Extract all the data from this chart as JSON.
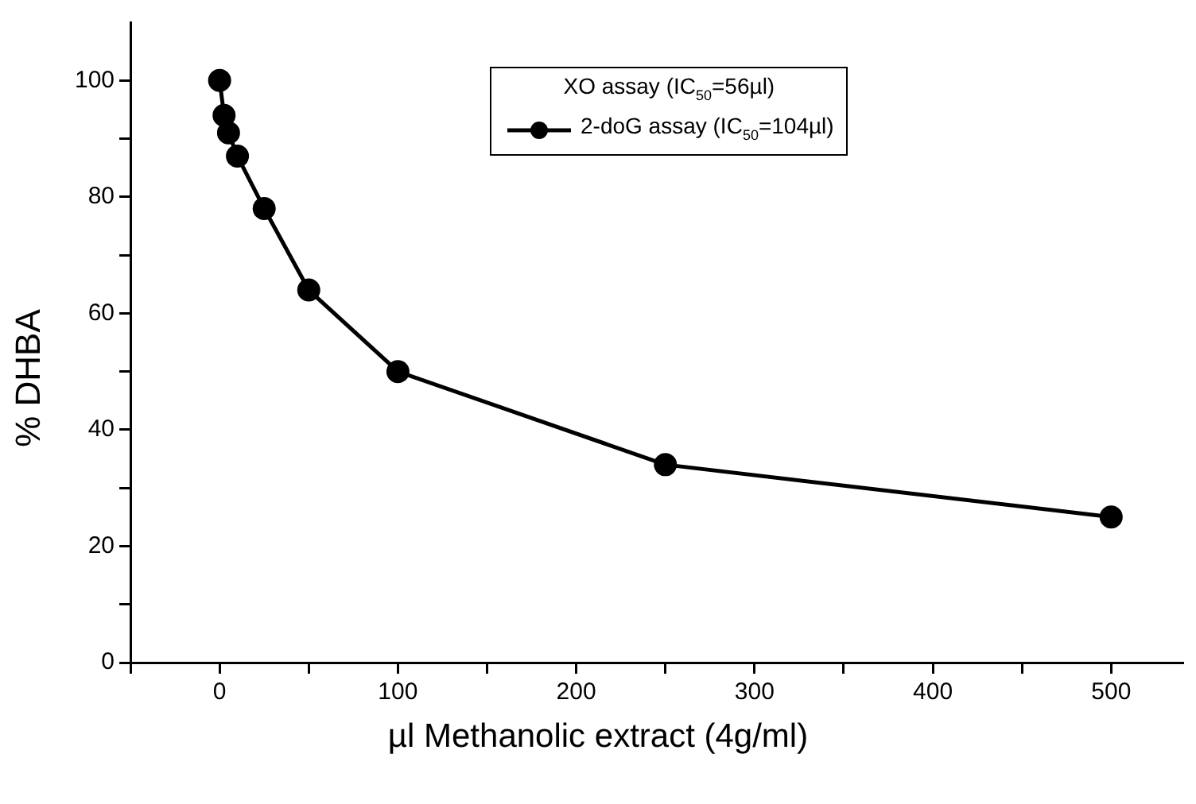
{
  "chart_data": {
    "type": "line",
    "xlabel": "µl Methanolic extract (4g/ml)",
    "ylabel": "% DHBA",
    "x": [
      0,
      2.5,
      5,
      10,
      25,
      50,
      100,
      250,
      500
    ],
    "series": [
      {
        "name": "2-doG assay (IC$_{50}$=104µl)",
        "color": "#000000",
        "values": [
          100,
          94,
          91,
          87,
          78,
          64,
          50,
          34,
          25
        ]
      }
    ],
    "annotations": [
      "XO assay (IC$_{50}$=56µl)"
    ],
    "xlim": [
      -50,
      540
    ],
    "xticks": [
      {
        "value": -50,
        "label": null
      },
      0,
      {
        "value": 50,
        "label": null
      },
      100,
      {
        "value": 150,
        "label": null
      },
      200,
      {
        "value": 250,
        "label": null
      },
      300,
      {
        "value": 350,
        "label": null
      },
      400,
      {
        "value": 450,
        "label": null
      },
      500
    ],
    "ylim": [
      0,
      110
    ],
    "yticks": [
      0,
      {
        "value": 10,
        "label": null
      },
      20,
      {
        "value": 30,
        "label": null
      },
      40,
      {
        "value": 50,
        "label": null
      },
      60,
      {
        "value": 70,
        "label": null
      },
      80,
      {
        "value": 90,
        "label": null
      },
      100
    ],
    "grid": false,
    "legend": "top right",
    "marker": "circle",
    "line_style": "solid"
  }
}
